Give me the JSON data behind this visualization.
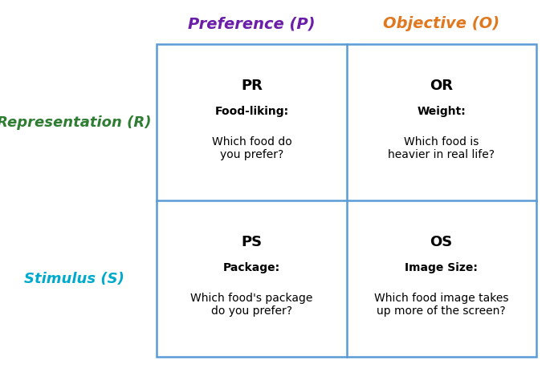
{
  "col_headers": [
    "Preference (P)",
    "Objective (O)"
  ],
  "col_header_colors": [
    "#6B1FA8",
    "#E07820"
  ],
  "row_headers": [
    "Representation (R)",
    "Stimulus (S)"
  ],
  "row_header_colors": [
    "#2E7D32",
    "#00AACC"
  ],
  "cells": [
    {
      "code": "PR",
      "subtitle": "Food-liking:",
      "body": "Which food do\nyou prefer?"
    },
    {
      "code": "OR",
      "subtitle": "Weight:",
      "body": "Which food is\nheavier in real life?"
    },
    {
      "code": "PS",
      "subtitle": "Package:",
      "body": "Which food's package\ndo you prefer?"
    },
    {
      "code": "OS",
      "subtitle": "Image Size:",
      "body": "Which food image takes\nup more of the screen?"
    }
  ],
  "grid_color": "#5B9BD5",
  "background_color": "#FFFFFF",
  "cell_fontsize_code": 13,
  "cell_fontsize_subtitle": 10,
  "cell_fontsize_body": 10,
  "header_fontsize": 14,
  "row_header_fontsize": 13
}
